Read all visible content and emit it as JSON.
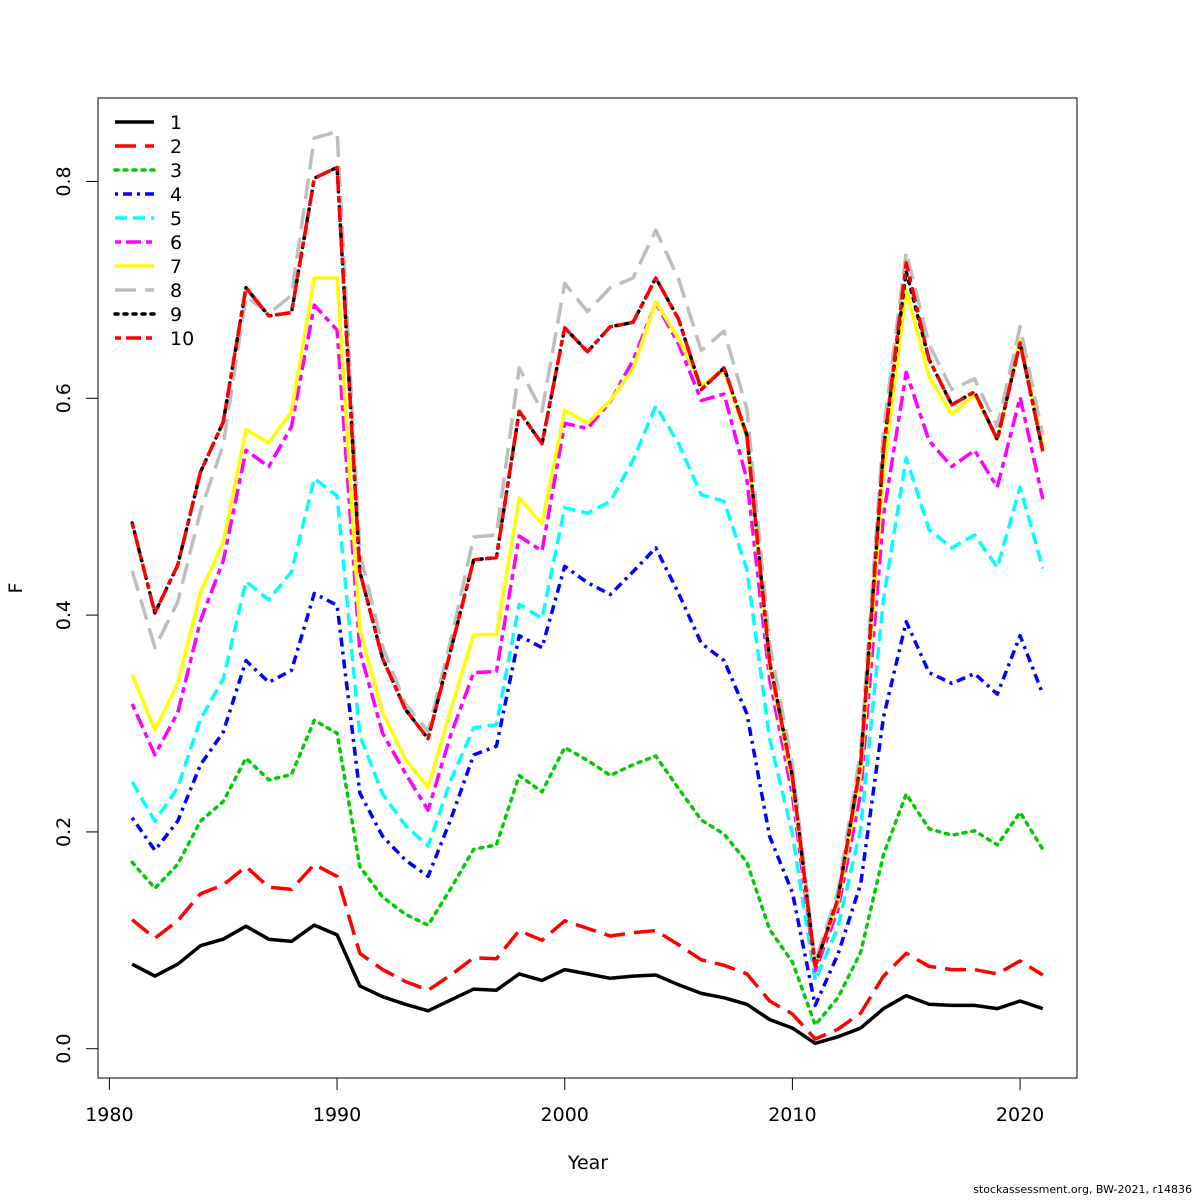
{
  "chart_data": {
    "type": "line",
    "xlabel": "Year",
    "ylabel": "F",
    "xlim": [
      1979.5,
      2022.5
    ],
    "ylim": [
      -0.027,
      0.877
    ],
    "xticks": [
      "1980",
      "1990",
      "2000",
      "2010",
      "2020"
    ],
    "yticks": [
      "0.0",
      "0.2",
      "0.4",
      "0.6",
      "0.8"
    ],
    "legend_position": "top-left",
    "x": [
      1981,
      1982,
      1983,
      1984,
      1985,
      1986,
      1987,
      1988,
      1989,
      1990,
      1991,
      1992,
      1993,
      1994,
      1995,
      1996,
      1997,
      1998,
      1999,
      2000,
      2001,
      2002,
      2003,
      2004,
      2005,
      2006,
      2007,
      2008,
      2009,
      2010,
      2011,
      2012,
      2013,
      2014,
      2015,
      2016,
      2017,
      2018,
      2019,
      2020,
      2021
    ],
    "series": [
      {
        "name": "1",
        "color": "#000000",
        "dash": "solid",
        "values": [
          0.078,
          0.067,
          0.078,
          0.095,
          0.101,
          0.113,
          0.101,
          0.099,
          0.114,
          0.105,
          0.058,
          0.048,
          0.041,
          0.035,
          0.045,
          0.055,
          0.054,
          0.069,
          0.063,
          0.073,
          0.069,
          0.065,
          0.067,
          0.068,
          0.059,
          0.051,
          0.047,
          0.041,
          0.027,
          0.019,
          0.005,
          0.011,
          0.019,
          0.037,
          0.049,
          0.041,
          0.04,
          0.04,
          0.037,
          0.044,
          0.037
        ]
      },
      {
        "name": "2",
        "color": "#ff0000",
        "dash": "longdash",
        "values": [
          0.119,
          0.102,
          0.118,
          0.143,
          0.151,
          0.168,
          0.149,
          0.147,
          0.17,
          0.159,
          0.088,
          0.073,
          0.062,
          0.054,
          0.068,
          0.084,
          0.083,
          0.109,
          0.1,
          0.118,
          0.111,
          0.104,
          0.107,
          0.109,
          0.096,
          0.082,
          0.077,
          0.069,
          0.044,
          0.032,
          0.009,
          0.018,
          0.033,
          0.067,
          0.088,
          0.076,
          0.073,
          0.073,
          0.069,
          0.081,
          0.068
        ]
      },
      {
        "name": "3",
        "color": "#00cc00",
        "dash": "dotted",
        "values": [
          0.172,
          0.148,
          0.17,
          0.21,
          0.228,
          0.268,
          0.248,
          0.253,
          0.303,
          0.291,
          0.168,
          0.14,
          0.124,
          0.114,
          0.148,
          0.184,
          0.188,
          0.252,
          0.237,
          0.278,
          0.266,
          0.252,
          0.262,
          0.27,
          0.24,
          0.211,
          0.198,
          0.172,
          0.11,
          0.08,
          0.022,
          0.047,
          0.089,
          0.179,
          0.235,
          0.203,
          0.197,
          0.201,
          0.188,
          0.218,
          0.184
        ]
      },
      {
        "name": "4",
        "color": "#0000ff",
        "dash": "dotdash",
        "values": [
          0.213,
          0.183,
          0.21,
          0.262,
          0.292,
          0.358,
          0.338,
          0.349,
          0.42,
          0.409,
          0.236,
          0.196,
          0.174,
          0.159,
          0.212,
          0.271,
          0.279,
          0.381,
          0.37,
          0.445,
          0.43,
          0.419,
          0.44,
          0.462,
          0.42,
          0.374,
          0.358,
          0.309,
          0.196,
          0.144,
          0.04,
          0.087,
          0.152,
          0.306,
          0.394,
          0.347,
          0.337,
          0.346,
          0.327,
          0.381,
          0.327
        ]
      },
      {
        "name": "5",
        "color": "#00ffff",
        "dash": "dashed",
        "values": [
          0.246,
          0.21,
          0.241,
          0.304,
          0.341,
          0.431,
          0.414,
          0.44,
          0.526,
          0.51,
          0.289,
          0.235,
          0.206,
          0.187,
          0.248,
          0.296,
          0.299,
          0.41,
          0.397,
          0.499,
          0.494,
          0.505,
          0.543,
          0.593,
          0.558,
          0.511,
          0.505,
          0.442,
          0.286,
          0.198,
          0.063,
          0.112,
          0.203,
          0.415,
          0.545,
          0.479,
          0.462,
          0.474,
          0.444,
          0.518,
          0.443
        ]
      },
      {
        "name": "6",
        "color": "#ff00ff",
        "dash": "twodash",
        "values": [
          0.318,
          0.271,
          0.31,
          0.395,
          0.45,
          0.552,
          0.537,
          0.574,
          0.686,
          0.663,
          0.367,
          0.291,
          0.254,
          0.22,
          0.29,
          0.347,
          0.348,
          0.473,
          0.459,
          0.577,
          0.572,
          0.597,
          0.635,
          0.688,
          0.65,
          0.598,
          0.604,
          0.525,
          0.341,
          0.234,
          0.072,
          0.128,
          0.236,
          0.492,
          0.624,
          0.561,
          0.537,
          0.552,
          0.518,
          0.601,
          0.507
        ]
      },
      {
        "name": "7",
        "color": "#ffff00",
        "dash": "solid",
        "values": [
          0.345,
          0.294,
          0.337,
          0.421,
          0.467,
          0.571,
          0.559,
          0.588,
          0.711,
          0.711,
          0.386,
          0.31,
          0.267,
          0.241,
          0.313,
          0.382,
          0.382,
          0.508,
          0.484,
          0.589,
          0.577,
          0.598,
          0.627,
          0.689,
          0.655,
          0.612,
          0.626,
          0.563,
          0.353,
          0.245,
          0.076,
          0.135,
          0.254,
          0.532,
          0.7,
          0.62,
          0.585,
          0.604,
          0.562,
          0.655,
          0.556
        ]
      },
      {
        "name": "8",
        "color": "#bebebe",
        "dash": "longdash",
        "values": [
          0.441,
          0.37,
          0.412,
          0.496,
          0.557,
          0.694,
          0.678,
          0.695,
          0.84,
          0.846,
          0.458,
          0.371,
          0.318,
          0.293,
          0.377,
          0.472,
          0.474,
          0.628,
          0.588,
          0.706,
          0.68,
          0.702,
          0.711,
          0.755,
          0.71,
          0.644,
          0.662,
          0.59,
          0.374,
          0.262,
          0.08,
          0.145,
          0.275,
          0.57,
          0.735,
          0.65,
          0.608,
          0.618,
          0.574,
          0.666,
          0.566
        ]
      },
      {
        "name": "9",
        "color": "#000000",
        "dash": "dotted",
        "values": [
          0.485,
          0.402,
          0.446,
          0.532,
          0.578,
          0.702,
          0.676,
          0.679,
          0.803,
          0.813,
          0.44,
          0.36,
          0.313,
          0.286,
          0.368,
          0.451,
          0.453,
          0.588,
          0.558,
          0.665,
          0.643,
          0.666,
          0.67,
          0.711,
          0.673,
          0.608,
          0.628,
          0.566,
          0.357,
          0.251,
          0.076,
          0.138,
          0.263,
          0.553,
          0.717,
          0.636,
          0.594,
          0.606,
          0.562,
          0.651,
          0.551
        ]
      },
      {
        "name": "10",
        "color": "#ff0000",
        "dash": "twodash",
        "values": [
          0.485,
          0.402,
          0.446,
          0.532,
          0.578,
          0.702,
          0.676,
          0.679,
          0.803,
          0.813,
          0.44,
          0.36,
          0.313,
          0.286,
          0.368,
          0.451,
          0.453,
          0.588,
          0.558,
          0.665,
          0.643,
          0.666,
          0.67,
          0.711,
          0.673,
          0.608,
          0.628,
          0.566,
          0.357,
          0.251,
          0.076,
          0.138,
          0.263,
          0.553,
          0.725,
          0.636,
          0.594,
          0.606,
          0.562,
          0.651,
          0.551
        ]
      }
    ]
  },
  "footer": {
    "text": "stockassessment.org, BW-2021, r14836"
  }
}
